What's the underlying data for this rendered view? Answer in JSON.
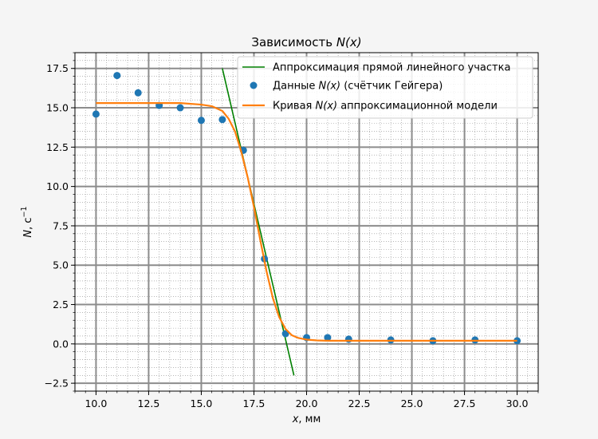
{
  "chart_data": {
    "type": "scatter",
    "title_text": "Зависимость ",
    "title_var": "N(x)",
    "xlabel_var": "x",
    "xlabel_unit": ", мм",
    "ylabel_var": "N",
    "ylabel_unit": ", с",
    "ylabel_sup": "−1",
    "xlim": [
      9,
      31
    ],
    "ylim": [
      -3,
      18.5
    ],
    "xticks": [
      "10.0",
      "12.5",
      "15.0",
      "17.5",
      "20.0",
      "22.5",
      "25.0",
      "27.5",
      "30.0"
    ],
    "yticks": [
      "−2.5",
      "0.0",
      "2.5",
      "5.0",
      "7.5",
      "10.0",
      "12.5",
      "15.0",
      "17.5"
    ],
    "grid": true,
    "legend_position": "top-right",
    "colors": {
      "data": "#1f77b4",
      "line": "#008000",
      "model": "#ff7f0e",
      "grid": "#8c8c8c"
    },
    "series": [
      {
        "name": "Аппроксимация прямой линейного участка",
        "kind": "line",
        "x": [
          16.0,
          19.4
        ],
        "y": [
          17.5,
          -2.0
        ]
      },
      {
        "name_prefix": "Данные ",
        "name_var": "N(x)",
        "name_suffix": " (счётчик Гейгера)",
        "kind": "scatter",
        "x": [
          10,
          11,
          12,
          13,
          14,
          15,
          16,
          17,
          18,
          19,
          20,
          21,
          22,
          24,
          26,
          28,
          30
        ],
        "y": [
          14.6,
          17.05,
          15.95,
          15.15,
          15.0,
          14.2,
          14.25,
          12.3,
          5.4,
          0.65,
          0.4,
          0.4,
          0.3,
          0.25,
          0.2,
          0.25,
          0.2
        ]
      },
      {
        "name_prefix": "Кривая ",
        "name_var": "N(x)",
        "name_suffix": " аппроксимационной модели",
        "kind": "curve",
        "x": [
          10,
          14.0,
          15.0,
          15.5,
          16.0,
          16.3,
          16.6,
          16.9,
          17.2,
          17.5,
          17.8,
          18.1,
          18.4,
          18.7,
          19.0,
          19.3,
          19.6,
          20.0,
          20.5,
          21.0,
          22.0,
          30
        ],
        "y": [
          15.3,
          15.3,
          15.2,
          15.1,
          14.8,
          14.3,
          13.5,
          12.2,
          10.6,
          8.7,
          6.6,
          4.6,
          2.9,
          1.7,
          0.95,
          0.55,
          0.38,
          0.27,
          0.22,
          0.2,
          0.2,
          0.2
        ]
      }
    ]
  }
}
